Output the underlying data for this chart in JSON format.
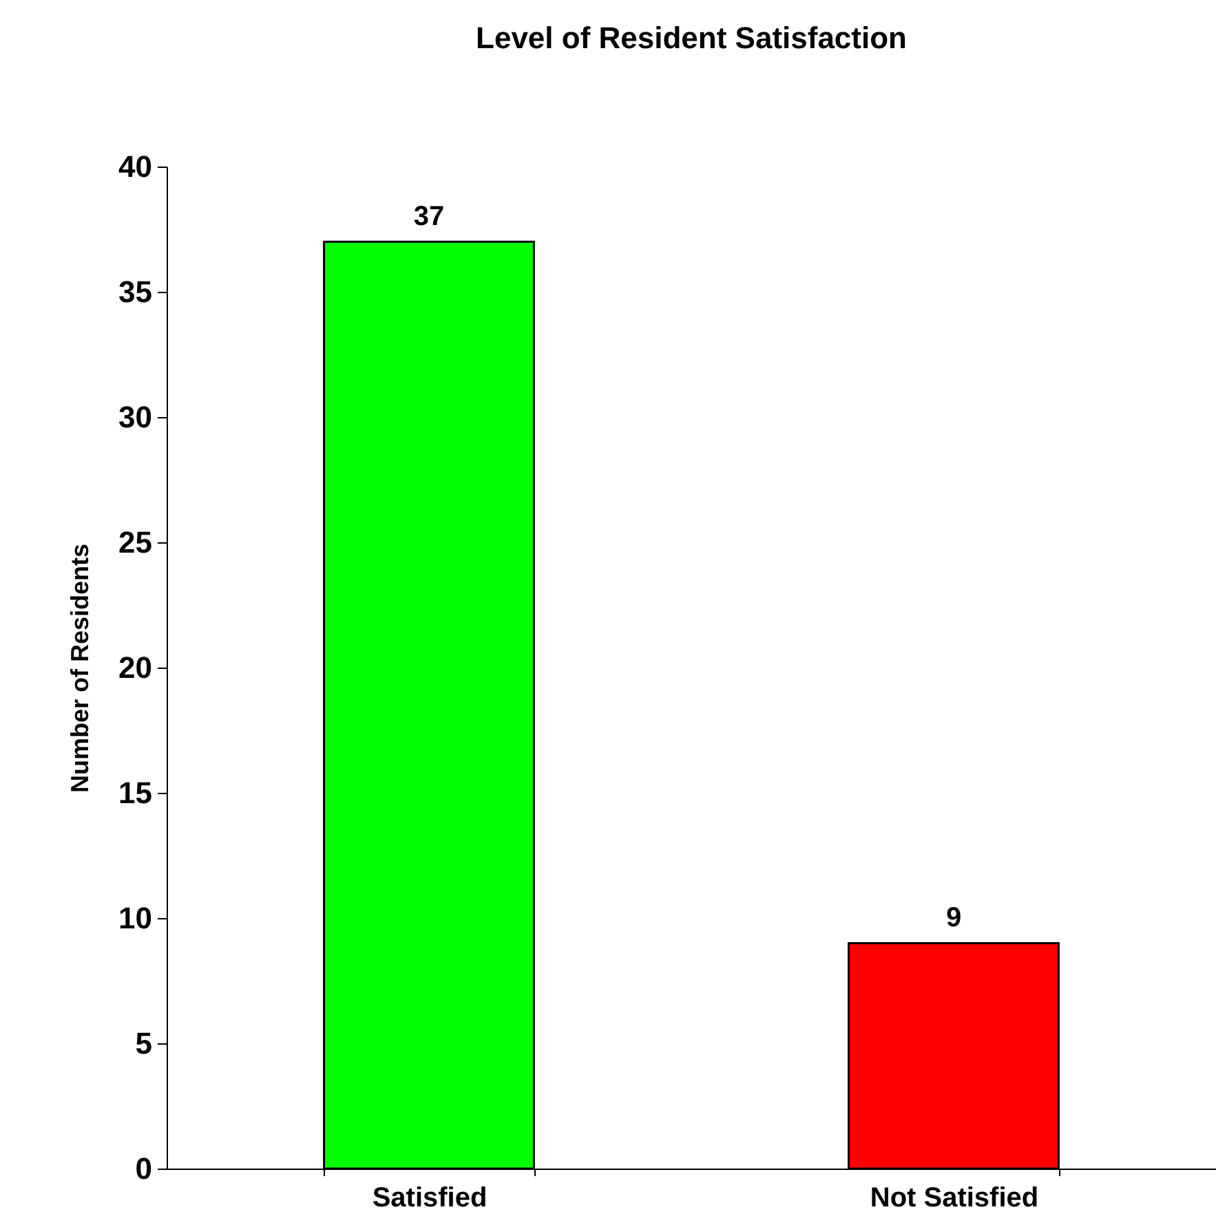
{
  "chart_data": {
    "type": "bar",
    "title": "Level of Resident Satisfaction",
    "ylabel": "Number of Residents",
    "categories": [
      "Satisfied",
      "Not Satisfied"
    ],
    "values": [
      37,
      9
    ],
    "colors": [
      "#00ff00",
      "#ff0000"
    ],
    "ylim": [
      0,
      40
    ],
    "yticks": [
      0,
      5,
      10,
      15,
      20,
      25,
      30,
      35,
      40
    ],
    "grid": false,
    "data_labels": true
  }
}
